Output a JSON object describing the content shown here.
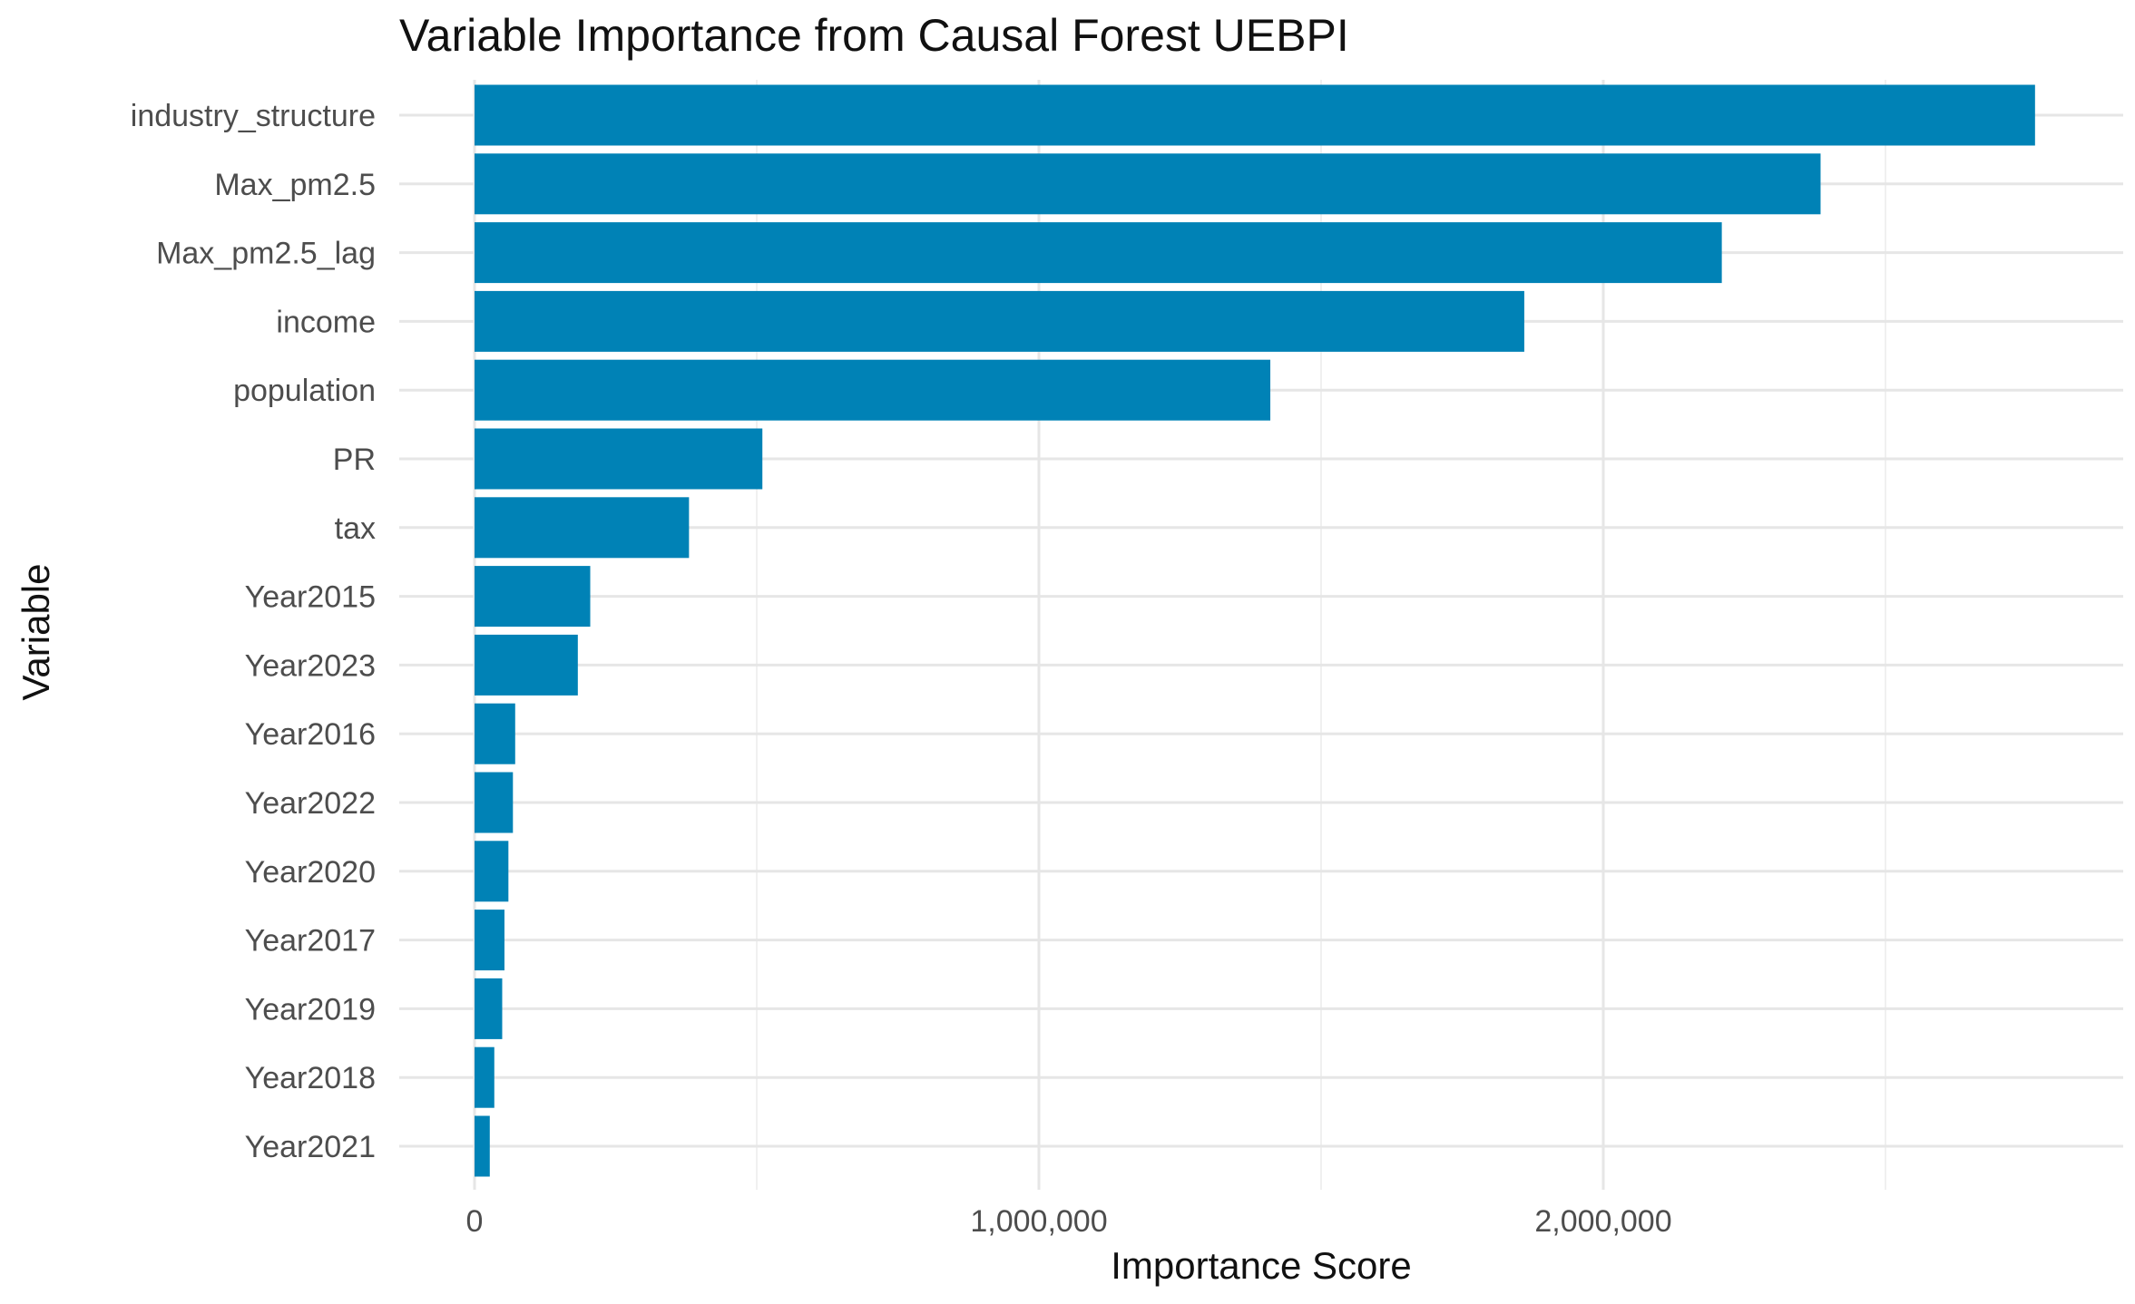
{
  "chart_data": {
    "type": "bar",
    "orientation": "horizontal",
    "title": "Variable Importance from Causal Forest UEBPI",
    "xlabel": "Importance Score",
    "ylabel": "Variable",
    "xlim": [
      0,
      2800000
    ],
    "x_ticks": [
      0,
      1000000,
      2000000
    ],
    "x_tick_labels": [
      "0",
      "1,000,000",
      "2,000,000"
    ],
    "bar_color": "#0082B6",
    "grid": true,
    "categories": [
      "industry_structure",
      "Max_pm2.5",
      "Max_pm2.5_lag",
      "income",
      "population",
      "PR",
      "tax",
      "Year2015",
      "Year2023",
      "Year2016",
      "Year2022",
      "Year2020",
      "Year2017",
      "Year2019",
      "Year2018",
      "Year2021"
    ],
    "values": [
      2765000,
      2385000,
      2210000,
      1860000,
      1410000,
      510000,
      380000,
      205000,
      183000,
      72000,
      68000,
      60000,
      53000,
      49000,
      35000,
      27000
    ]
  }
}
